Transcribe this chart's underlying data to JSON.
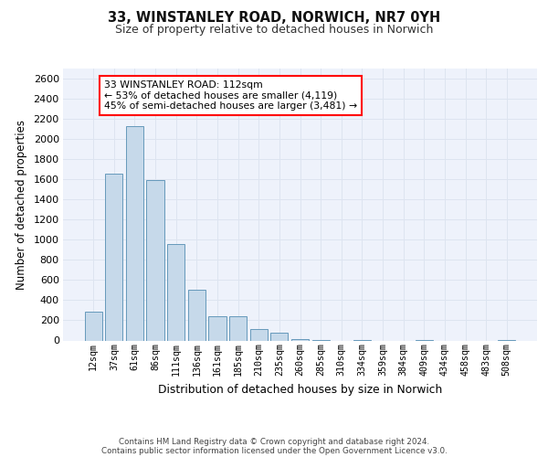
{
  "title1": "33, WINSTANLEY ROAD, NORWICH, NR7 0YH",
  "title2": "Size of property relative to detached houses in Norwich",
  "xlabel": "Distribution of detached houses by size in Norwich",
  "ylabel": "Number of detached properties",
  "categories": [
    "12sqm",
    "37sqm",
    "61sqm",
    "86sqm",
    "111sqm",
    "136sqm",
    "161sqm",
    "185sqm",
    "210sqm",
    "235sqm",
    "260sqm",
    "285sqm",
    "310sqm",
    "334sqm",
    "359sqm",
    "384sqm",
    "409sqm",
    "434sqm",
    "458sqm",
    "483sqm",
    "508sqm"
  ],
  "values": [
    290,
    1660,
    2130,
    1590,
    960,
    500,
    245,
    245,
    110,
    80,
    15,
    5,
    0,
    5,
    0,
    0,
    5,
    0,
    0,
    0,
    5
  ],
  "bar_color": "#c6d9ea",
  "bar_edge_color": "#6699bb",
  "annotation_box_text": "33 WINSTANLEY ROAD: 112sqm\n← 53% of detached houses are smaller (4,119)\n45% of semi-detached houses are larger (3,481) →",
  "ylim": [
    0,
    2700
  ],
  "yticks": [
    0,
    200,
    400,
    600,
    800,
    1000,
    1200,
    1400,
    1600,
    1800,
    2000,
    2200,
    2400,
    2600
  ],
  "grid_color": "#dde4f0",
  "background_color": "#eef2fb",
  "footer1": "Contains HM Land Registry data © Crown copyright and database right 2024.",
  "footer2": "Contains public sector information licensed under the Open Government Licence v3.0."
}
